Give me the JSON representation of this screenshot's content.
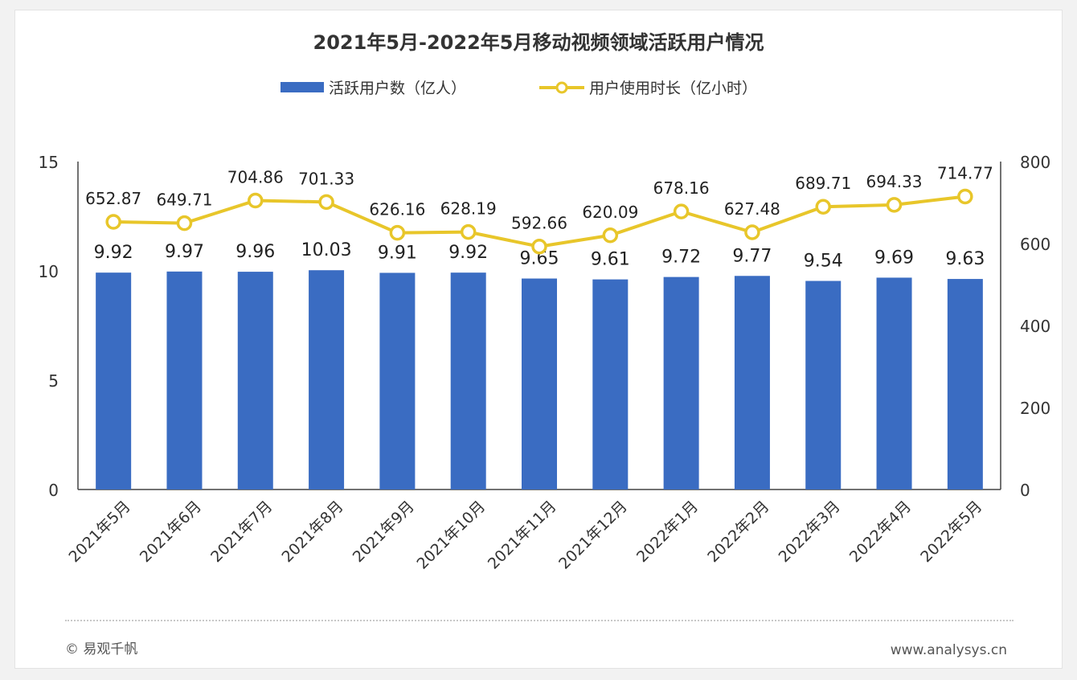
{
  "chart_data": {
    "type": "bar",
    "title": "2021年5月-2022年5月移动视频领域活跃用户情况",
    "categories": [
      "2021年5月",
      "2021年6月",
      "2021年7月",
      "2021年8月",
      "2021年9月",
      "2021年10月",
      "2021年11月",
      "2021年12月",
      "2022年1月",
      "2022年2月",
      "2022年3月",
      "2022年4月",
      "2022年5月"
    ],
    "series": [
      {
        "name": "活跃用户数（亿人）",
        "type": "bar",
        "axis": "left",
        "color": "#3a6cc2",
        "values": [
          9.92,
          9.97,
          9.96,
          10.03,
          9.91,
          9.92,
          9.65,
          9.61,
          9.72,
          9.77,
          9.54,
          9.69,
          9.63
        ],
        "labels": [
          "9.92",
          "9.97",
          "9.96",
          "10.03",
          "9.91",
          "9.92",
          "9.65",
          "9.61",
          "9.72",
          "9.77",
          "9.54",
          "9.69",
          "9.63"
        ]
      },
      {
        "name": "用户使用时长（亿小时）",
        "type": "line",
        "axis": "right",
        "color": "#e8c62a",
        "values": [
          652.87,
          649.71,
          704.86,
          701.33,
          626.16,
          628.19,
          592.66,
          620.09,
          678.16,
          627.48,
          689.71,
          694.33,
          714.77
        ],
        "labels": [
          "652.87",
          "649.71",
          "704.86",
          "701.33",
          "626.16",
          "628.19",
          "592.66",
          "620.09",
          "678.16",
          "627.48",
          "689.71",
          "694.33",
          "714.77"
        ]
      }
    ],
    "y_left": {
      "ylim": [
        0,
        15
      ],
      "ticks": [
        "0",
        "5",
        "10",
        "15"
      ]
    },
    "y_right": {
      "ylim": [
        0,
        800
      ],
      "ticks": [
        "0",
        "200",
        "400",
        "600",
        "800"
      ]
    },
    "legend": "top-center",
    "grid": false
  },
  "footer": {
    "source": "© 易观千帆",
    "website": "www.analysys.cn"
  }
}
